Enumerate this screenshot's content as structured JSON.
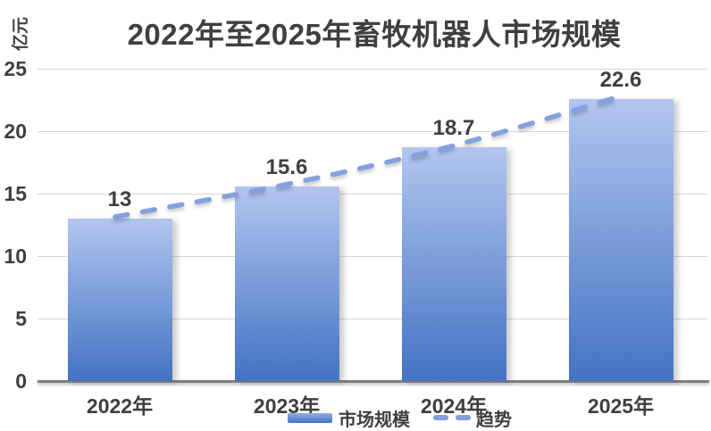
{
  "title": "2022年至2025年畜牧机器人市场规模",
  "y_unit_label": "亿元",
  "colors": {
    "bar_gradient_top": "#b2c6ef",
    "bar_gradient_bottom": "#4472c4",
    "trend_line": "#85a0de",
    "grid_line": "#d6d6d6",
    "axis_line": "#7f7f7f",
    "text": "#3f3f3f"
  },
  "chart_data": {
    "type": "bar",
    "categories": [
      "2022年",
      "2023年",
      "2024年",
      "2025年"
    ],
    "series": [
      {
        "name": "市场规模",
        "type": "bar",
        "values": [
          13,
          15.6,
          18.7,
          22.6
        ],
        "labels": [
          "13",
          "15.6",
          "18.7",
          "22.6"
        ]
      },
      {
        "name": "趋势",
        "type": "dashed-line",
        "values": [
          13,
          15.6,
          18.7,
          22.6
        ]
      }
    ],
    "title": "2022年至2025年畜牧机器人市场规模",
    "xlabel": "",
    "ylabel": "亿元",
    "yticks": [
      0,
      5,
      10,
      15,
      20,
      25
    ],
    "ylim": [
      0,
      25
    ],
    "grid": true,
    "legend_position": "bottom-center"
  },
  "legend": {
    "items": [
      {
        "label": "市场规模",
        "swatch": "bar"
      },
      {
        "label": "趋势",
        "swatch": "dashed-line"
      }
    ]
  }
}
